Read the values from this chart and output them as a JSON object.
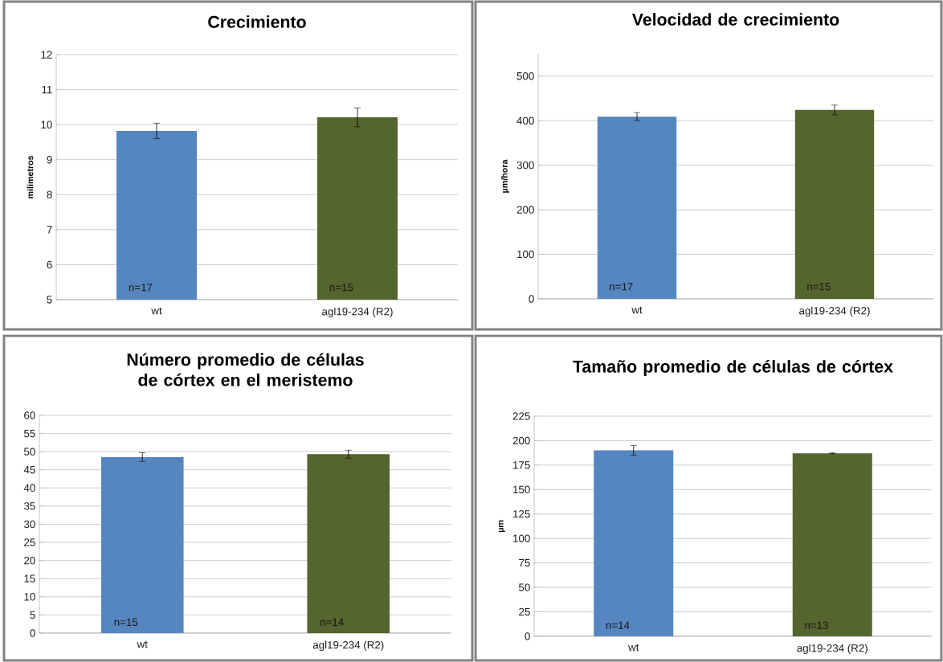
{
  "chart_data": [
    {
      "type": "bar",
      "title": "Crecimiento",
      "ylabel": "milimetros",
      "categories": [
        "wt",
        "agl19-234 (R2)"
      ],
      "values": [
        9.82,
        10.21
      ],
      "errors": [
        0.22,
        0.27
      ],
      "colors": [
        "#5586c0",
        "#54652d"
      ],
      "ylim": [
        5,
        12
      ],
      "yticks": [
        5,
        6,
        7,
        8,
        9,
        10,
        11,
        12
      ],
      "grid": "y",
      "annotations": [
        "n=17",
        "n=15"
      ]
    },
    {
      "type": "bar",
      "title": "Velocidad de crecimiento",
      "ylabel": "µm/hora",
      "categories": [
        "wt",
        "agl19-234 (R2)"
      ],
      "values": [
        409,
        424
      ],
      "errors": [
        9,
        11
      ],
      "colors": [
        "#5586c0",
        "#54652d"
      ],
      "ylim": [
        0,
        550
      ],
      "yticks": [
        0,
        100,
        200,
        300,
        400,
        500
      ],
      "grid": "y",
      "annotations": [
        "n=17",
        "n=15"
      ]
    },
    {
      "type": "bar",
      "title": "Número promedio de células de córtex en el meristemo",
      "categories": [
        "wt",
        "agl19-234 (R2)"
      ],
      "values": [
        48.5,
        49.3
      ],
      "errors": [
        1.2,
        1.1
      ],
      "colors": [
        "#5586c0",
        "#54652d"
      ],
      "ylim": [
        0,
        60
      ],
      "yticks": [
        0,
        5,
        10,
        15,
        20,
        25,
        30,
        35,
        40,
        45,
        50,
        55,
        60
      ],
      "grid": "y",
      "annotations": [
        "n=15",
        "n=14"
      ]
    },
    {
      "type": "bar",
      "title": "Tamaño promedio de células de córtex",
      "ylabel": "µm",
      "categories": [
        "wt",
        "agl19-234 (R2)"
      ],
      "values": [
        190,
        187
      ],
      "errors": [
        5,
        0.5
      ],
      "colors": [
        "#5586c0",
        "#54652d"
      ],
      "ylim": [
        0,
        225
      ],
      "yticks": [
        0,
        25,
        50,
        75,
        100,
        125,
        150,
        175,
        200,
        225
      ],
      "grid": "y",
      "annotations": [
        "n=14",
        "n=13"
      ]
    }
  ]
}
